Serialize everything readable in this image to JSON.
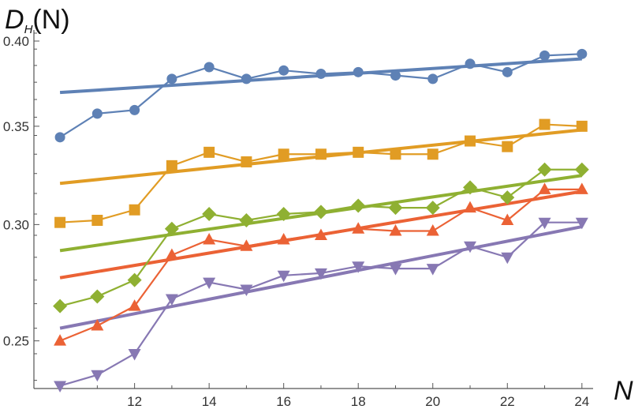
{
  "chart_data": {
    "type": "line",
    "title": "",
    "ylabel": "D",
    "ylabel_sub": "H",
    "ylabel_arg": "(N)",
    "xlabel": "N",
    "x": [
      10,
      11,
      12,
      13,
      14,
      15,
      16,
      17,
      18,
      19,
      20,
      21,
      22,
      23,
      24
    ],
    "xlim": [
      9.3,
      24.3
    ],
    "ylim": [
      0.232,
      0.407
    ],
    "y_scale": "log",
    "xticks": [
      12,
      14,
      16,
      18,
      20,
      22,
      24
    ],
    "yticks": [
      0.25,
      0.3,
      0.35,
      0.4
    ],
    "xtick_labels": [
      "12",
      "14",
      "16",
      "18",
      "20",
      "22",
      "24"
    ],
    "ytick_labels": [
      "0.25",
      "0.30",
      "0.35",
      "0.40"
    ],
    "grid": false,
    "legend": "none",
    "series": [
      {
        "color": "#5e81b5",
        "marker": "circle",
        "values": [
          0.344,
          0.357,
          0.359,
          0.377,
          0.384,
          0.377,
          0.382,
          0.38,
          0.381,
          0.379,
          0.377,
          0.386,
          0.381,
          0.391,
          0.392
        ],
        "fit": [
          0.369,
          0.389
        ]
      },
      {
        "color": "#e19c24",
        "marker": "square",
        "values": [
          0.301,
          0.302,
          0.307,
          0.329,
          0.336,
          0.331,
          0.335,
          0.335,
          0.336,
          0.335,
          0.335,
          0.342,
          0.339,
          0.351,
          0.35
        ],
        "fit": [
          0.32,
          0.348
        ]
      },
      {
        "color": "#8fb032",
        "marker": "diamond",
        "values": [
          0.264,
          0.268,
          0.275,
          0.298,
          0.305,
          0.302,
          0.305,
          0.306,
          0.309,
          0.308,
          0.308,
          0.318,
          0.313,
          0.327,
          0.327
        ],
        "fit": [
          0.288,
          0.324
        ]
      },
      {
        "color": "#eb6235",
        "marker": "triangle-up",
        "values": [
          0.25,
          0.256,
          0.264,
          0.286,
          0.293,
          0.29,
          0.293,
          0.295,
          0.298,
          0.297,
          0.297,
          0.308,
          0.302,
          0.317,
          0.317
        ],
        "fit": [
          0.276,
          0.316
        ]
      },
      {
        "color": "#8778b3",
        "marker": "triangle-down",
        "values": [
          0.233,
          0.237,
          0.245,
          0.267,
          0.274,
          0.271,
          0.277,
          0.278,
          0.281,
          0.28,
          0.28,
          0.29,
          0.285,
          0.301,
          0.301
        ],
        "fit": [
          0.255,
          0.299
        ]
      }
    ]
  }
}
